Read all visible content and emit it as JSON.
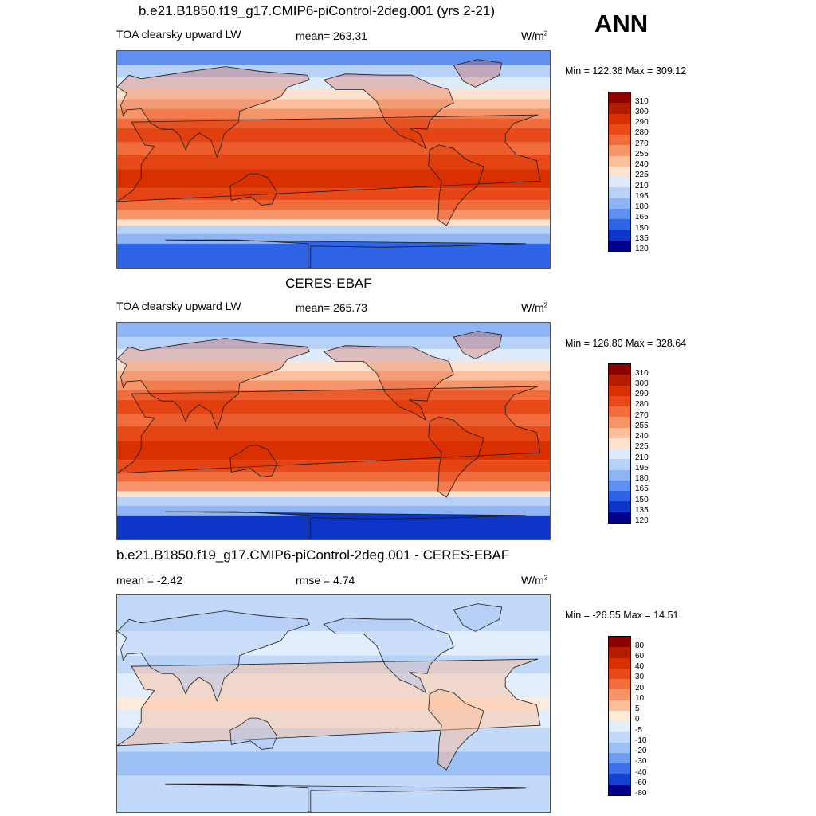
{
  "season": "ANN",
  "panels": [
    {
      "title": "b.e21.B1850.f19_g17.CMIP6-piControl-2deg.001 (yrs 2-21)",
      "left_label": "TOA clearsky upward LW",
      "center_label": "mean= 263.31",
      "units": "W/m",
      "units_sup": "2",
      "minmax": "Min = 122.36 Max = 309.12",
      "colorbar_levels": [
        "310",
        "300",
        "290",
        "280",
        "270",
        "255",
        "240",
        "225",
        "210",
        "195",
        "180",
        "165",
        "150",
        "135",
        "120"
      ],
      "colorbar_colors": [
        "#8b0000",
        "#b51d00",
        "#d83000",
        "#e84a1a",
        "#f26d3d",
        "#f7956a",
        "#fbbf9c",
        "#fde3cf",
        "#deebfb",
        "#b7d1f7",
        "#8eb4f3",
        "#5f8ff0",
        "#2f63e8",
        "#0d36c9",
        "#00008b"
      ],
      "map_style": "model"
    },
    {
      "title": "CERES-EBAF",
      "left_label": "TOA clearsky upward LW",
      "center_label": "mean= 265.73",
      "units": "W/m",
      "units_sup": "2",
      "minmax": "Min = 126.80 Max = 328.64",
      "colorbar_levels": [
        "310",
        "300",
        "290",
        "280",
        "270",
        "255",
        "240",
        "225",
        "210",
        "195",
        "180",
        "165",
        "150",
        "135",
        "120"
      ],
      "colorbar_colors": [
        "#8b0000",
        "#b51d00",
        "#d83000",
        "#e84a1a",
        "#f26d3d",
        "#f7956a",
        "#fbbf9c",
        "#fde3cf",
        "#deebfb",
        "#b7d1f7",
        "#8eb4f3",
        "#5f8ff0",
        "#2f63e8",
        "#0d36c9",
        "#00008b"
      ],
      "map_style": "obs"
    },
    {
      "title": "b.e21.B1850.f19_g17.CMIP6-piControl-2deg.001 - CERES-EBAF",
      "left_label": "mean =  -2.42",
      "center_label": "rmse =   4.74",
      "units": "W/m",
      "units_sup": "2",
      "minmax": "Min = -26.55 Max =  14.51",
      "colorbar_levels": [
        "80",
        "60",
        "40",
        "30",
        "20",
        "10",
        "5",
        "0",
        "-5",
        "-10",
        "-20",
        "-30",
        "-40",
        "-60",
        "-80"
      ],
      "colorbar_colors": [
        "#8b0000",
        "#b51d00",
        "#d83000",
        "#e84a1a",
        "#f26d3d",
        "#f7956a",
        "#fbbf9c",
        "#fdebdc",
        "#e3eefc",
        "#c3d9f9",
        "#9dc0f5",
        "#6f9ef1",
        "#3d70ea",
        "#1640d0",
        "#00008b"
      ],
      "map_style": "diff"
    }
  ]
}
